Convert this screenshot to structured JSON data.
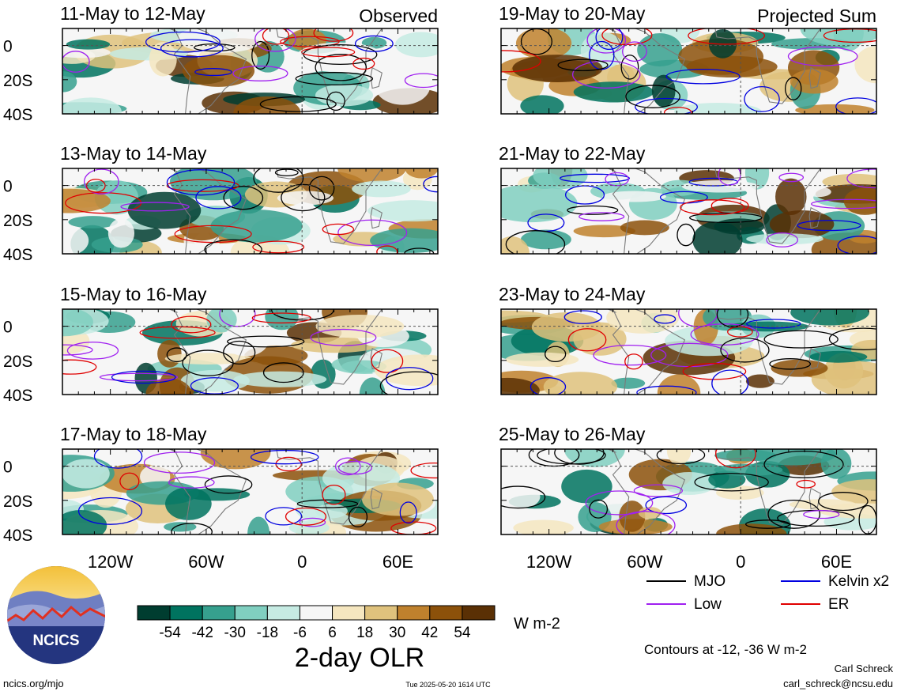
{
  "panels": [
    {
      "date": "11-May to 12-May",
      "tag": "Observed"
    },
    {
      "date": "13-May to 14-May",
      "tag": ""
    },
    {
      "date": "15-May to 16-May",
      "tag": ""
    },
    {
      "date": "17-May to 18-May",
      "tag": ""
    },
    {
      "date": "19-May to 20-May",
      "tag": "Projected Sum"
    },
    {
      "date": "21-May to 22-May",
      "tag": ""
    },
    {
      "date": "23-May to 24-May",
      "tag": ""
    },
    {
      "date": "25-May to 26-May",
      "tag": ""
    }
  ],
  "lat_ticks": [
    "0",
    "20S",
    "40S"
  ],
  "lon_ticks": [
    "120W",
    "60W",
    "0",
    "60E"
  ],
  "legend": {
    "items": [
      {
        "label": "MJO",
        "color": "#000000"
      },
      {
        "label": "Kelvin x2",
        "color": "#0000e0"
      },
      {
        "label": "Low",
        "color": "#a020f0"
      },
      {
        "label": "ER",
        "color": "#e00000"
      }
    ],
    "contours_note": "Contours at -12, -36 W m-2"
  },
  "colorbar": {
    "labels": [
      "-54",
      "-42",
      "-30",
      "-18",
      "-6",
      "6",
      "18",
      "30",
      "42",
      "54"
    ],
    "colors": [
      "#003d30",
      "#00735f",
      "#36a08e",
      "#80cfc0",
      "#c6ebe3",
      "#f6f6f6",
      "#f5e6bf",
      "#dfc27d",
      "#bf812d",
      "#8c510a",
      "#5a3005"
    ],
    "units": "W m-2",
    "title": "2-day OLR"
  },
  "logo": {
    "text": "NCICS"
  },
  "footer": {
    "url": "ncics.org/mjo",
    "timestamp": "Tue 2025-05-20 1614 UTC",
    "author": "Carl Schreck",
    "email": "carl_schreck@ncsu.edu"
  }
}
